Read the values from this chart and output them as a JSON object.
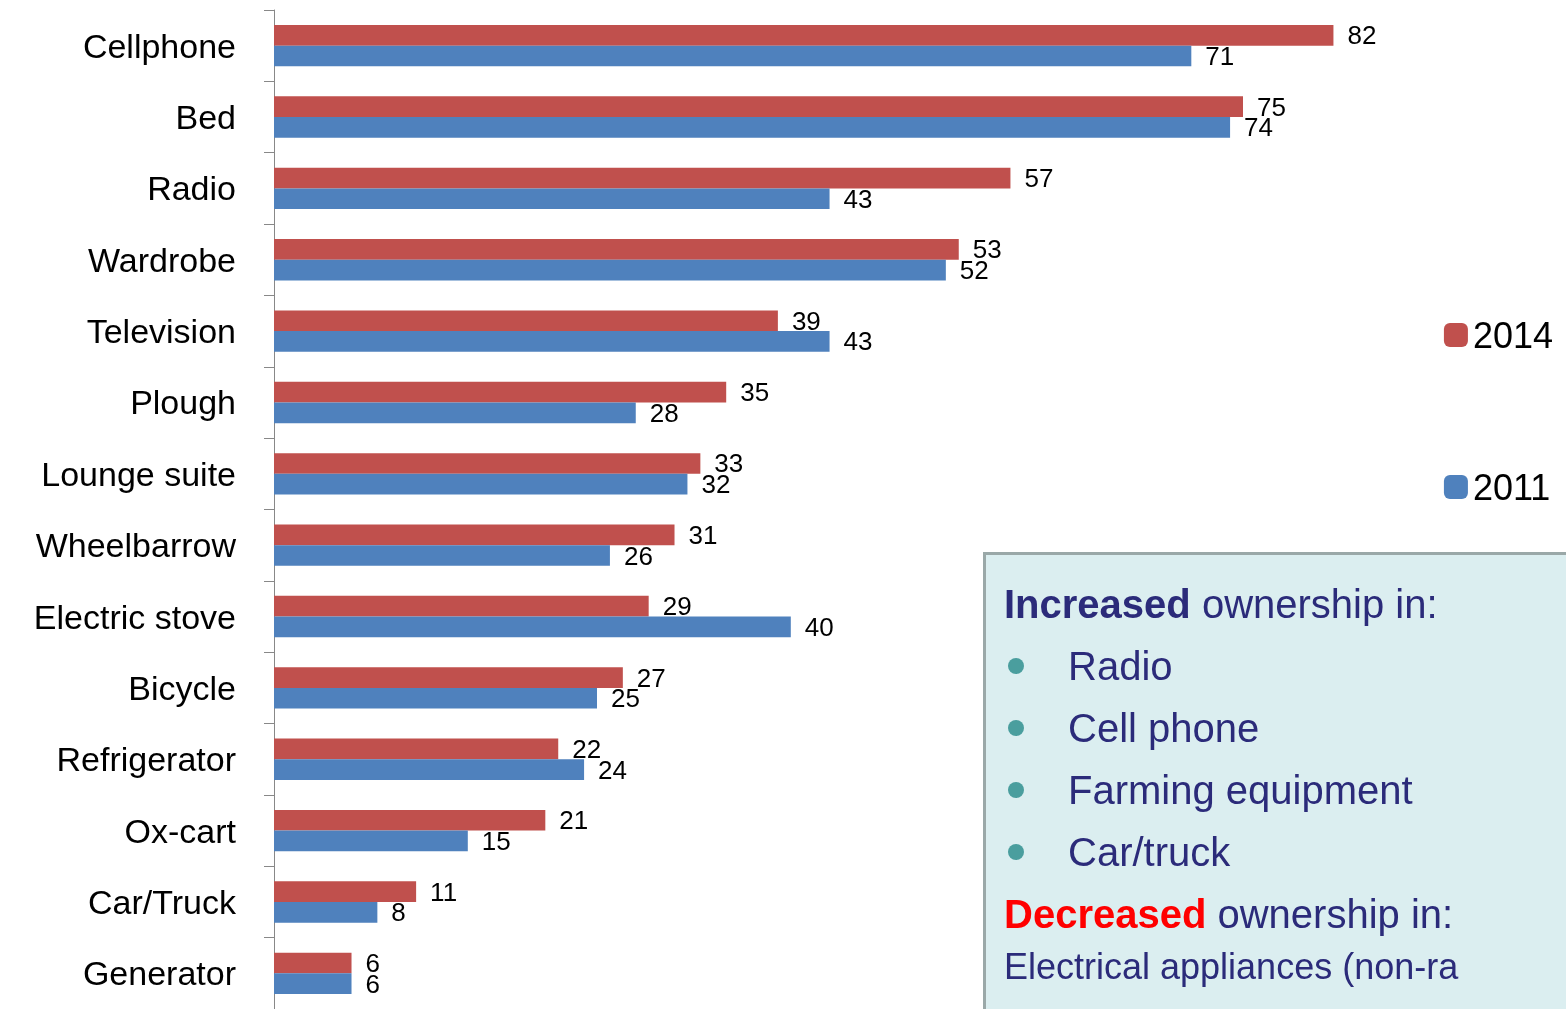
{
  "chart_data": {
    "type": "bar",
    "orientation": "horizontal",
    "categories": [
      "Cellphone",
      "Bed",
      "Radio",
      "Wardrobe",
      "Television",
      "Plough",
      "Lounge suite",
      "Wheelbarrow",
      "Electric stove",
      "Bicycle",
      "Refrigerator",
      "Ox-cart",
      "Car/Truck",
      "Generator"
    ],
    "series": [
      {
        "name": "2014",
        "color": "#c0504d",
        "values": [
          82,
          75,
          57,
          53,
          39,
          35,
          33,
          31,
          29,
          27,
          22,
          21,
          11,
          6
        ]
      },
      {
        "name": "2011",
        "color": "#4f81bd",
        "values": [
          71,
          74,
          43,
          52,
          43,
          28,
          32,
          26,
          40,
          25,
          24,
          15,
          8,
          6
        ]
      }
    ],
    "data_labels": true,
    "legend": "right",
    "grid": false,
    "annotations": [
      "Increased ownership in:",
      "Radio",
      "Cell phone",
      "Farming equipment",
      "Car/truck",
      "Decreased ownership in:",
      "Electrical appliances (non-ra"
    ]
  }
}
